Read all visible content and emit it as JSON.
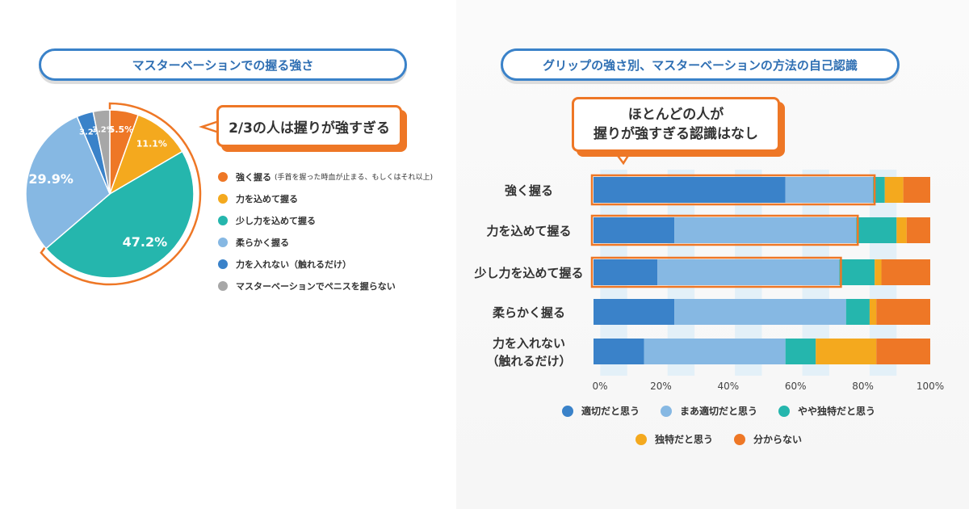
{
  "left_title": "マスターベーションでの握る強さ",
  "right_title": "グリップの強さ別、マスターベーションの方法の自己認識",
  "left_callout": "2/3の人は握りが強すぎる",
  "right_callout": [
    "ほとんどの人が",
    "握りが強すぎる認識はなし"
  ],
  "colors": {
    "orange": "#ee7726",
    "yellow": "#f4a91e",
    "teal": "#25b6ad",
    "lightblue": "#86b8e3",
    "blue": "#3a82c9",
    "gray": "#a7a7a7"
  },
  "chart_data": [
    {
      "type": "pie",
      "title": "マスターベーションでの握る強さ",
      "slices": [
        {
          "name": "強く握る",
          "note": "(手首を握った時血が止まる、もしくはそれ以上)",
          "value": 5.5,
          "label": "5.5%",
          "color": "#ee7726"
        },
        {
          "name": "力を込めて握る",
          "note": "",
          "value": 11.1,
          "label": "11.1%",
          "color": "#f4a91e"
        },
        {
          "name": "少し力を込めて握る",
          "note": "",
          "value": 47.2,
          "label": "47.2%",
          "color": "#25b6ad"
        },
        {
          "name": "柔らかく握る",
          "note": "",
          "value": 29.9,
          "label": "29.9%",
          "color": "#86b8e3"
        },
        {
          "name": "力を入れない（触れるだけ）",
          "note": "",
          "value": 3.2,
          "label": "3.2%",
          "color": "#3a82c9"
        },
        {
          "name": "マスターベーションでペニスを握らない",
          "note": "",
          "value": 3.2,
          "label": "3.2%",
          "color": "#a7a7a7"
        }
      ]
    },
    {
      "type": "bar",
      "orientation": "horizontal-stacked",
      "title": "グリップの強さ別、マスターベーションの方法の自己認識",
      "categories": [
        [
          "強く握る"
        ],
        [
          "力を込めて握る"
        ],
        [
          "少し力を込めて握る"
        ],
        [
          "柔らかく握る"
        ],
        [
          "力を入れない",
          "（触れるだけ）"
        ]
      ],
      "series": [
        {
          "name": "適切だと思う",
          "color": "#3a82c9",
          "values": [
            57,
            24,
            19,
            24,
            15
          ]
        },
        {
          "name": "まあ適切だと思う",
          "color": "#86b8e3",
          "values": [
            26,
            54,
            54,
            51,
            42
          ]
        },
        {
          "name": "やや独特だと思う",
          "color": "#25b6ad",
          "values": [
            3.5,
            12,
            10.5,
            7,
            9
          ]
        },
        {
          "name": "独特だと思う",
          "color": "#f4a91e",
          "values": [
            5.5,
            3,
            2,
            2,
            18
          ]
        },
        {
          "name": "分からない",
          "color": "#ee7726",
          "values": [
            8,
            7,
            14.5,
            16,
            16
          ]
        }
      ],
      "highlighted_rows": [
        0,
        1,
        2
      ],
      "xlim": [
        0,
        100
      ],
      "xticks": [
        "0%",
        "20%",
        "40%",
        "60%",
        "80%",
        "100%"
      ],
      "legend_placement": "bottom"
    }
  ]
}
